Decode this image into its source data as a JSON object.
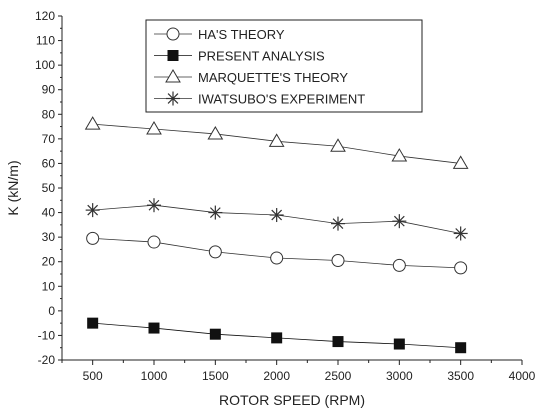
{
  "chart_data": {
    "type": "line",
    "xlabel": "ROTOR SPEED (RPM)",
    "ylabel": "K (kN/m)",
    "xlim": [
      250,
      4000
    ],
    "ylim": [
      -20,
      120
    ],
    "xticks": [
      500,
      1000,
      1500,
      2000,
      2500,
      3000,
      3500,
      4000
    ],
    "yticks": [
      -20,
      -10,
      0,
      10,
      20,
      30,
      40,
      50,
      60,
      70,
      80,
      90,
      100,
      110,
      120
    ],
    "x": [
      500,
      1000,
      1500,
      2000,
      2500,
      3000,
      3500
    ],
    "legend_position": "top-center",
    "grid": false,
    "series": [
      {
        "name": "HA'S THEORY",
        "marker": "circle-open",
        "color": "#333333",
        "values": [
          29.5,
          28,
          24,
          21.5,
          20.5,
          18.5,
          17.5
        ]
      },
      {
        "name": "PRESENT ANALYSIS",
        "marker": "square-filled",
        "color": "#111111",
        "values": [
          -5,
          -7,
          -9.5,
          -11,
          -12.5,
          -13.5,
          -15
        ]
      },
      {
        "name": "MARQUETTE'S THEORY",
        "marker": "triangle-open",
        "color": "#333333",
        "values": [
          76,
          74,
          72,
          69,
          67,
          63,
          60
        ]
      },
      {
        "name": "IWATSUBO'S EXPERIMENT",
        "marker": "asterisk",
        "color": "#333333",
        "values": [
          41,
          43,
          40,
          39,
          35.5,
          36.5,
          31.5
        ]
      }
    ]
  }
}
